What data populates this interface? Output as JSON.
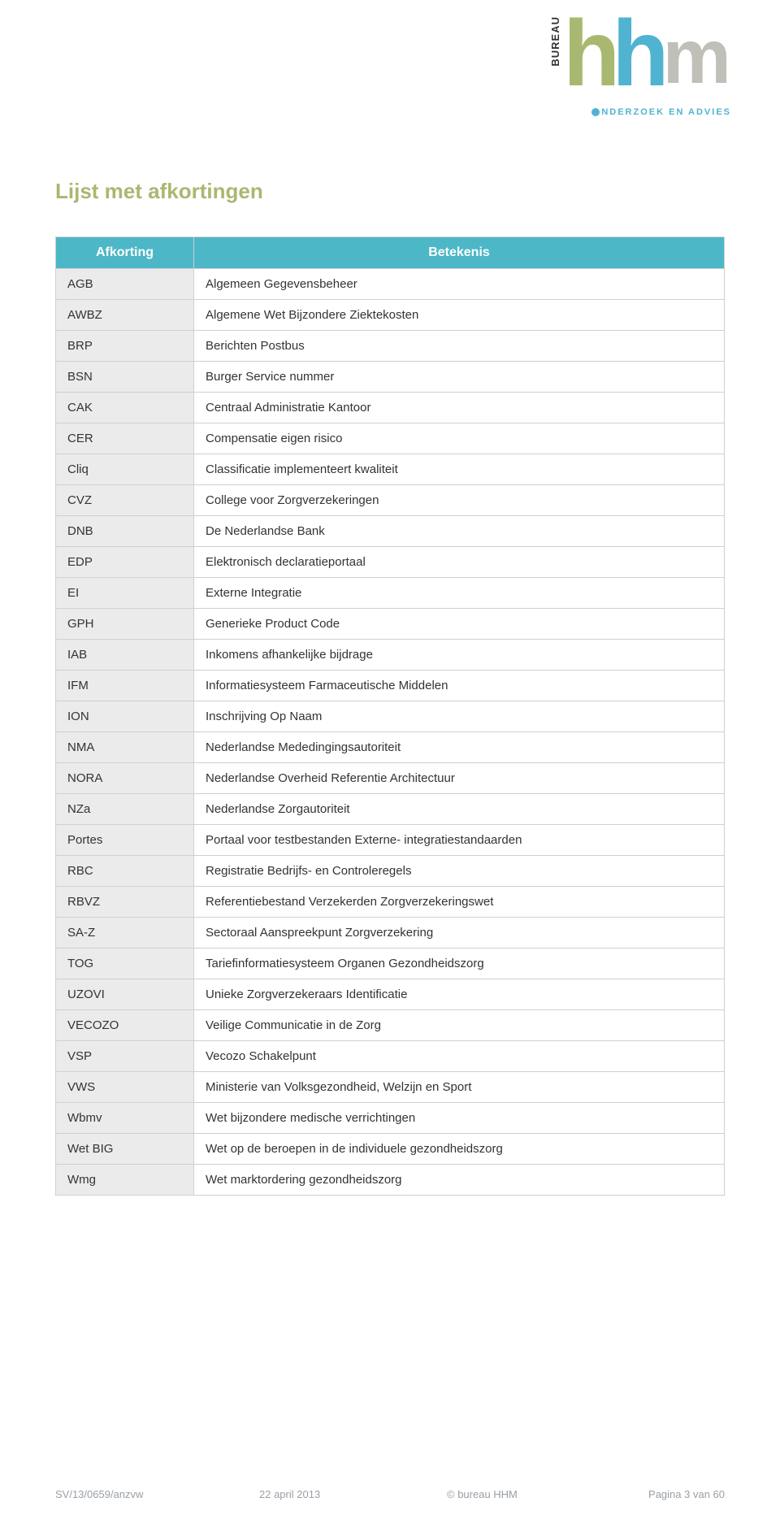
{
  "logo": {
    "bureau": "BUREAU",
    "h1": "h",
    "h2": "h",
    "m": "m",
    "tagline": "NDERZOEK EN ADVIES"
  },
  "title": "Lijst met afkortingen",
  "table": {
    "headers": {
      "col1": "Afkorting",
      "col2": "Betekenis"
    },
    "rows": [
      {
        "abbr": "AGB",
        "meaning": "Algemeen Gegevensbeheer"
      },
      {
        "abbr": "AWBZ",
        "meaning": "Algemene Wet Bijzondere Ziektekosten"
      },
      {
        "abbr": "BRP",
        "meaning": "Berichten Postbus"
      },
      {
        "abbr": "BSN",
        "meaning": "Burger Service nummer"
      },
      {
        "abbr": "CAK",
        "meaning": "Centraal Administratie Kantoor"
      },
      {
        "abbr": "CER",
        "meaning": "Compensatie eigen risico"
      },
      {
        "abbr": "Cliq",
        "meaning": "Classificatie implementeert kwaliteit"
      },
      {
        "abbr": "CVZ",
        "meaning": "College voor Zorgverzekeringen"
      },
      {
        "abbr": "DNB",
        "meaning": "De Nederlandse Bank"
      },
      {
        "abbr": "EDP",
        "meaning": "Elektronisch declaratieportaal"
      },
      {
        "abbr": "EI",
        "meaning": "Externe Integratie"
      },
      {
        "abbr": "GPH",
        "meaning": "Generieke Product Code"
      },
      {
        "abbr": "IAB",
        "meaning": "Inkomens afhankelijke bijdrage"
      },
      {
        "abbr": "IFM",
        "meaning": "Informatiesysteem Farmaceutische Middelen"
      },
      {
        "abbr": "ION",
        "meaning": "Inschrijving Op Naam"
      },
      {
        "abbr": "NMA",
        "meaning": "Nederlandse Mededingingsautoriteit"
      },
      {
        "abbr": "NORA",
        "meaning": "Nederlandse Overheid Referentie Architectuur"
      },
      {
        "abbr": "NZa",
        "meaning": "Nederlandse Zorgautoriteit"
      },
      {
        "abbr": "Portes",
        "meaning": "Portaal voor testbestanden Externe- integratiestandaarden"
      },
      {
        "abbr": "RBC",
        "meaning": "Registratie Bedrijfs- en Controleregels"
      },
      {
        "abbr": "RBVZ",
        "meaning": "Referentiebestand Verzekerden Zorgverzekeringswet"
      },
      {
        "abbr": "SA-Z",
        "meaning": "Sectoraal Aanspreekpunt Zorgverzekering"
      },
      {
        "abbr": "TOG",
        "meaning": "Tariefinformatiesysteem Organen Gezondheidszorg"
      },
      {
        "abbr": "UZOVI",
        "meaning": "Unieke Zorgverzekeraars Identificatie"
      },
      {
        "abbr": "VECOZO",
        "meaning": "Veilige Communicatie in de Zorg"
      },
      {
        "abbr": "VSP",
        "meaning": "Vecozo Schakelpunt"
      },
      {
        "abbr": "VWS",
        "meaning": "Ministerie van Volksgezondheid, Welzijn en Sport"
      },
      {
        "abbr": "Wbmv",
        "meaning": "Wet bijzondere medische verrichtingen"
      },
      {
        "abbr": "Wet BIG",
        "meaning": "Wet op de beroepen in de individuele gezondheidszorg"
      },
      {
        "abbr": "Wmg",
        "meaning": "Wet marktordering gezondheidszorg"
      }
    ]
  },
  "footer": {
    "ref": "SV/13/0659/anzvw",
    "date": "22 april 2013",
    "org": "© bureau HHM",
    "page": "Pagina 3 van 60"
  },
  "colors": {
    "accent_green": "#a9b870",
    "accent_teal": "#4cb7c7",
    "logo_blue": "#4fb3d1",
    "logo_grey": "#c0c0b8",
    "row_grey": "#ebebeb",
    "border": "#d0d0d0"
  }
}
